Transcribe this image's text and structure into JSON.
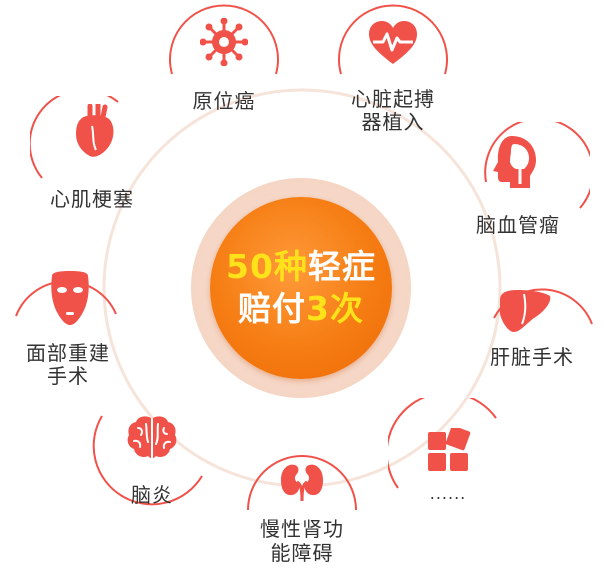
{
  "center": {
    "line1_highlight": "50种",
    "line1_rest": "轻症",
    "line2_rest": "赔付",
    "line2_highlight": "3次"
  },
  "items": [
    {
      "label": "原位癌",
      "icon": "virus-cell-icon"
    },
    {
      "label": "心脏起搏器植入",
      "line1": "心脏起搏",
      "line2": "器植入",
      "icon": "heart-pulse-icon"
    },
    {
      "label": "脑血管瘤",
      "icon": "head-brain-icon"
    },
    {
      "label": "肝脏手术",
      "icon": "liver-icon"
    },
    {
      "label": "......",
      "icon": "more-squares-icon"
    },
    {
      "label": "慢性肾功能障碍",
      "line1": "慢性肾功",
      "line2": "能障碍",
      "icon": "kidneys-icon"
    },
    {
      "label": "脑炎",
      "icon": "brain-icon"
    },
    {
      "label": "面部重建手术",
      "line1": "面部重建",
      "line2": "手术",
      "icon": "face-mask-icon"
    },
    {
      "label": "心肌梗塞",
      "icon": "anatomical-heart-icon"
    }
  ],
  "colors": {
    "accent_red": "#f0524a",
    "center_orange": "#f57c12",
    "highlight_yellow": "#ffe21a",
    "ring": "#f5e2d8"
  }
}
